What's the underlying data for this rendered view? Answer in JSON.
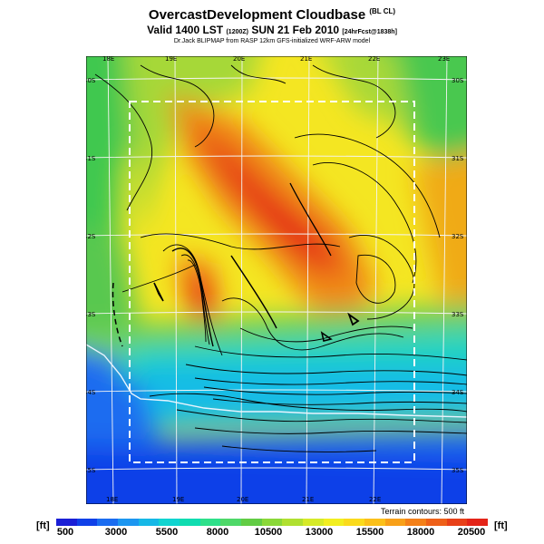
{
  "header": {
    "title": "OvercastDevelopment Cloudbase",
    "title_suffix": "(BL CL)",
    "valid_line": "Valid 1400 LST",
    "valid_code": "(1200Z)",
    "valid_date": "SUN 21 Feb 2010",
    "valid_run": "[24hrFcst@1838h]",
    "credit": "Dr.Jack BLIPMAP from RASP 12km GFS-initialized WRF-ARW model"
  },
  "map": {
    "lon_labels_top": [
      "18E",
      "19E",
      "20E",
      "21E",
      "22E",
      "23E"
    ],
    "lon_labels_bottom": [
      "18E",
      "19E",
      "20E",
      "21E",
      "22E"
    ],
    "lat_labels_left": [
      "30S",
      "31S",
      "32S",
      "33S",
      "34S",
      "35S"
    ],
    "lat_labels_right": [
      "30S",
      "31S",
      "32S",
      "33S",
      "34S",
      "35S"
    ]
  },
  "legend": {
    "terrain_note": "Terrain contours: 500 ft",
    "unit": "[ft]",
    "ticks": [
      "500",
      "3000",
      "5500",
      "8000",
      "10500",
      "13000",
      "15500",
      "18000",
      "20500"
    ],
    "colors": [
      "#1a1fd6",
      "#1040e8",
      "#1a6cf0",
      "#1c96f0",
      "#16b8e6",
      "#10d4d0",
      "#10dcb0",
      "#2ee08a",
      "#4ed868",
      "#62cc44",
      "#8ad838",
      "#b0e030",
      "#d6ea28",
      "#f2ee20",
      "#fada1c",
      "#fbc01a",
      "#f8a018",
      "#f48018",
      "#ee6018",
      "#e84018",
      "#e42418"
    ]
  }
}
